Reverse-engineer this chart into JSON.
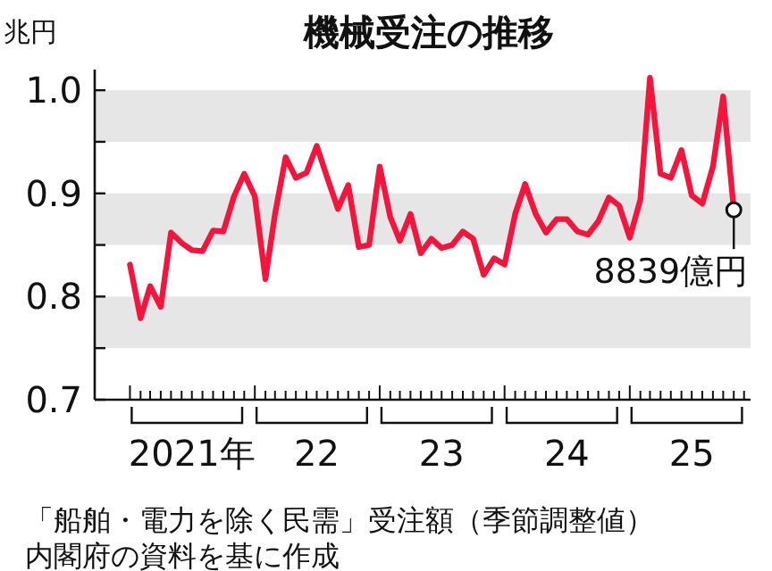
{
  "chart_data": {
    "type": "line",
    "title": "機械受注の推移",
    "ylabel": "兆円",
    "x": [
      "2021-01",
      "2021-02",
      "2021-03",
      "2021-04",
      "2021-05",
      "2021-06",
      "2021-07",
      "2021-08",
      "2021-09",
      "2021-10",
      "2021-11",
      "2021-12",
      "2022-01",
      "2022-02",
      "2022-03",
      "2022-04",
      "2022-05",
      "2022-06",
      "2022-07",
      "2022-08",
      "2022-09",
      "2022-10",
      "2022-11",
      "2022-12",
      "2023-01",
      "2023-02",
      "2023-03",
      "2023-04",
      "2023-05",
      "2023-06",
      "2023-07",
      "2023-08",
      "2023-09",
      "2023-10",
      "2023-11",
      "2023-12",
      "2024-01",
      "2024-02",
      "2024-03",
      "2024-04",
      "2024-05",
      "2024-06",
      "2024-07",
      "2024-08",
      "2024-09",
      "2024-10",
      "2024-11",
      "2024-12",
      "2025-01",
      "2025-02",
      "2025-03",
      "2025-04",
      "2025-05",
      "2025-06",
      "2025-07",
      "2025-08",
      "2025-09",
      "2025-10",
      "2025-11"
    ],
    "series": [
      {
        "color": "#f5143c",
        "values": [
          0.831,
          0.779,
          0.81,
          0.79,
          0.862,
          0.852,
          0.845,
          0.844,
          0.864,
          0.863,
          0.897,
          0.919,
          0.897,
          0.817,
          0.88,
          0.935,
          0.915,
          0.92,
          0.946,
          0.915,
          0.885,
          0.908,
          0.848,
          0.85,
          0.926,
          0.877,
          0.854,
          0.88,
          0.842,
          0.856,
          0.847,
          0.85,
          0.863,
          0.856,
          0.821,
          0.837,
          0.831,
          0.88,
          0.909,
          0.88,
          0.862,
          0.875,
          0.875,
          0.863,
          0.86,
          0.873,
          0.896,
          0.888,
          0.857,
          0.894,
          1.012,
          0.919,
          0.915,
          0.942,
          0.898,
          0.89,
          0.926,
          0.994,
          0.884
        ]
      }
    ],
    "xlim": [
      "2020-09-20",
      "2025-12-20"
    ],
    "ylim": [
      0.7,
      1.02
    ],
    "yticks": [
      0.7,
      {
        "value": 0.75,
        "label": null
      },
      0.8,
      {
        "value": 0.85,
        "label": null
      },
      0.9,
      {
        "value": 0.95,
        "label": null
      },
      {
        "value": 1.0,
        "label": "1.0"
      }
    ],
    "xticks": [
      {
        "value": "2021-01",
        "label": null
      },
      {
        "value": "2021-02",
        "label": null
      },
      {
        "value": "2021-03",
        "label": null
      },
      {
        "value": "2021-04",
        "label": null
      },
      {
        "value": "2021-05",
        "label": null
      },
      {
        "value": "2021-06",
        "label": null
      },
      {
        "value": "2021-07",
        "label": "2021年"
      },
      {
        "value": "2021-08",
        "label": null
      },
      {
        "value": "2021-09",
        "label": null
      },
      {
        "value": "2021-10",
        "label": null
      },
      {
        "value": "2021-11",
        "label": null
      },
      {
        "value": "2021-12",
        "label": null
      },
      {
        "value": "2022-01",
        "label": null
      },
      {
        "value": "2022-02",
        "label": null
      },
      {
        "value": "2022-03",
        "label": null
      },
      {
        "value": "2022-04",
        "label": null
      },
      {
        "value": "2022-05",
        "label": null
      },
      {
        "value": "2022-06",
        "label": null
      },
      {
        "value": "2022-07",
        "label": "22"
      },
      {
        "value": "2022-08",
        "label": null
      },
      {
        "value": "2022-09",
        "label": null
      },
      {
        "value": "2022-10",
        "label": null
      },
      {
        "value": "2022-11",
        "label": null
      },
      {
        "value": "2022-12",
        "label": null
      },
      {
        "value": "2023-01",
        "label": null
      },
      {
        "value": "2023-02",
        "label": null
      },
      {
        "value": "2023-03",
        "label": null
      },
      {
        "value": "2023-04",
        "label": null
      },
      {
        "value": "2023-05",
        "label": null
      },
      {
        "value": "2023-06",
        "label": null
      },
      {
        "value": "2023-07",
        "label": "23"
      },
      {
        "value": "2023-08",
        "label": null
      },
      {
        "value": "2023-09",
        "label": null
      },
      {
        "value": "2023-10",
        "label": null
      },
      {
        "value": "2023-11",
        "label": null
      },
      {
        "value": "2023-12",
        "label": null
      },
      {
        "value": "2024-01",
        "label": null
      },
      {
        "value": "2024-02",
        "label": null
      },
      {
        "value": "2024-03",
        "label": null
      },
      {
        "value": "2024-04",
        "label": null
      },
      {
        "value": "2024-05",
        "label": null
      },
      {
        "value": "2024-06",
        "label": null
      },
      {
        "value": "2024-07",
        "label": "24"
      },
      {
        "value": "2024-08",
        "label": null
      },
      {
        "value": "2024-09",
        "label": null
      },
      {
        "value": "2024-10",
        "label": null
      },
      {
        "value": "2024-11",
        "label": null
      },
      {
        "value": "2024-12",
        "label": null
      },
      {
        "value": "2025-01",
        "label": null
      },
      {
        "value": "2025-02",
        "label": null
      },
      {
        "value": "2025-03",
        "label": null
      },
      {
        "value": "2025-04",
        "label": null
      },
      {
        "value": "2025-05",
        "label": null
      },
      {
        "value": "2025-06",
        "label": null
      },
      {
        "value": "2025-07",
        "label": "25"
      },
      {
        "value": "2025-08",
        "label": null
      },
      {
        "value": "2025-09",
        "label": null
      },
      {
        "value": "2025-10",
        "label": null
      },
      {
        "value": "2025-11",
        "label": null
      },
      {
        "value": "2025-12",
        "label": null
      }
    ],
    "bands": [
      {
        "axis": "y",
        "from": 0.75,
        "to": 0.8,
        "color": "#e6e6e6"
      },
      {
        "axis": "y",
        "from": 0.85,
        "to": 0.9,
        "color": "#e6e6e6"
      },
      {
        "axis": "y",
        "from": 0.95,
        "to": 1.0,
        "color": "#e6e6e6"
      }
    ],
    "marker": "none",
    "line_style": "solid",
    "annotations": [
      {
        "text": "8839億円",
        "x": "2025-11",
        "y": 0.884
      },
      "「船舶・電力を除く民需」受注額（季節調整値）",
      "内閣府の資料を基に作成"
    ]
  }
}
